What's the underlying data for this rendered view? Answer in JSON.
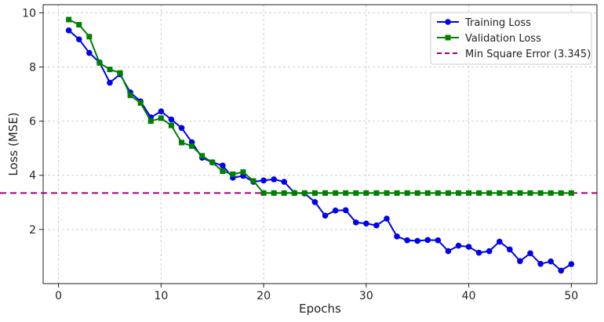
{
  "chart_data": {
    "type": "line",
    "title": "",
    "xlabel": "Epochs",
    "ylabel": "Loss (MSE)",
    "xlim": [
      -1.5,
      52.5
    ],
    "ylim": [
      0.0,
      10.3
    ],
    "xticks": [
      0,
      10,
      20,
      30,
      40,
      50
    ],
    "yticks": [
      2,
      4,
      6,
      8,
      10
    ],
    "grid": true,
    "legend_position": "top-right",
    "series": [
      {
        "name": "Training Loss",
        "color": "#0000ee",
        "marker": "circle",
        "x": [
          1,
          2,
          3,
          4,
          5,
          6,
          7,
          8,
          9,
          10,
          11,
          12,
          13,
          14,
          15,
          16,
          17,
          18,
          19,
          20,
          21,
          22,
          23,
          24,
          25,
          26,
          27,
          28,
          29,
          30,
          31,
          32,
          33,
          34,
          35,
          36,
          37,
          38,
          39,
          40,
          41,
          42,
          43,
          44,
          45,
          46,
          47,
          48,
          49,
          50
        ],
        "values": [
          9.35,
          9.02,
          8.52,
          8.17,
          7.42,
          7.73,
          7.06,
          6.73,
          6.14,
          6.36,
          6.06,
          5.75,
          5.22,
          4.65,
          4.48,
          4.36,
          3.91,
          3.98,
          3.76,
          3.81,
          3.85,
          3.76,
          3.35,
          3.33,
          3.01,
          2.51,
          2.7,
          2.71,
          2.26,
          2.22,
          2.15,
          2.4,
          1.74,
          1.6,
          1.58,
          1.61,
          1.6,
          1.2,
          1.4,
          1.36,
          1.14,
          1.2,
          1.55,
          1.26,
          0.83,
          1.12,
          0.73,
          0.82,
          0.48,
          0.72
        ]
      },
      {
        "name": "Validation Loss",
        "color": "#008000",
        "marker": "square",
        "x": [
          1,
          2,
          3,
          4,
          5,
          6,
          7,
          8,
          9,
          10,
          11,
          12,
          13,
          14,
          15,
          16,
          17,
          18,
          19,
          20,
          21,
          22,
          23,
          24,
          25,
          26,
          27,
          28,
          29,
          30,
          31,
          32,
          33,
          34,
          35,
          36,
          37,
          38,
          39,
          40,
          41,
          42,
          43,
          44,
          45,
          46,
          47,
          48,
          49,
          50
        ],
        "values": [
          9.75,
          9.56,
          9.12,
          8.15,
          7.91,
          7.78,
          6.95,
          6.67,
          6.0,
          6.11,
          5.84,
          5.21,
          5.08,
          4.72,
          4.48,
          4.15,
          4.04,
          4.12,
          3.79,
          3.345,
          3.345,
          3.345,
          3.345,
          3.345,
          3.345,
          3.345,
          3.345,
          3.345,
          3.345,
          3.345,
          3.345,
          3.345,
          3.345,
          3.345,
          3.345,
          3.345,
          3.345,
          3.345,
          3.345,
          3.345,
          3.345,
          3.345,
          3.345,
          3.345,
          3.345,
          3.345,
          3.345,
          3.345,
          3.345,
          3.345
        ]
      }
    ],
    "reference_line": {
      "name": "Min Square Error (3.345)",
      "value": 3.345,
      "color": "#a0007a",
      "style": "dashed"
    }
  }
}
